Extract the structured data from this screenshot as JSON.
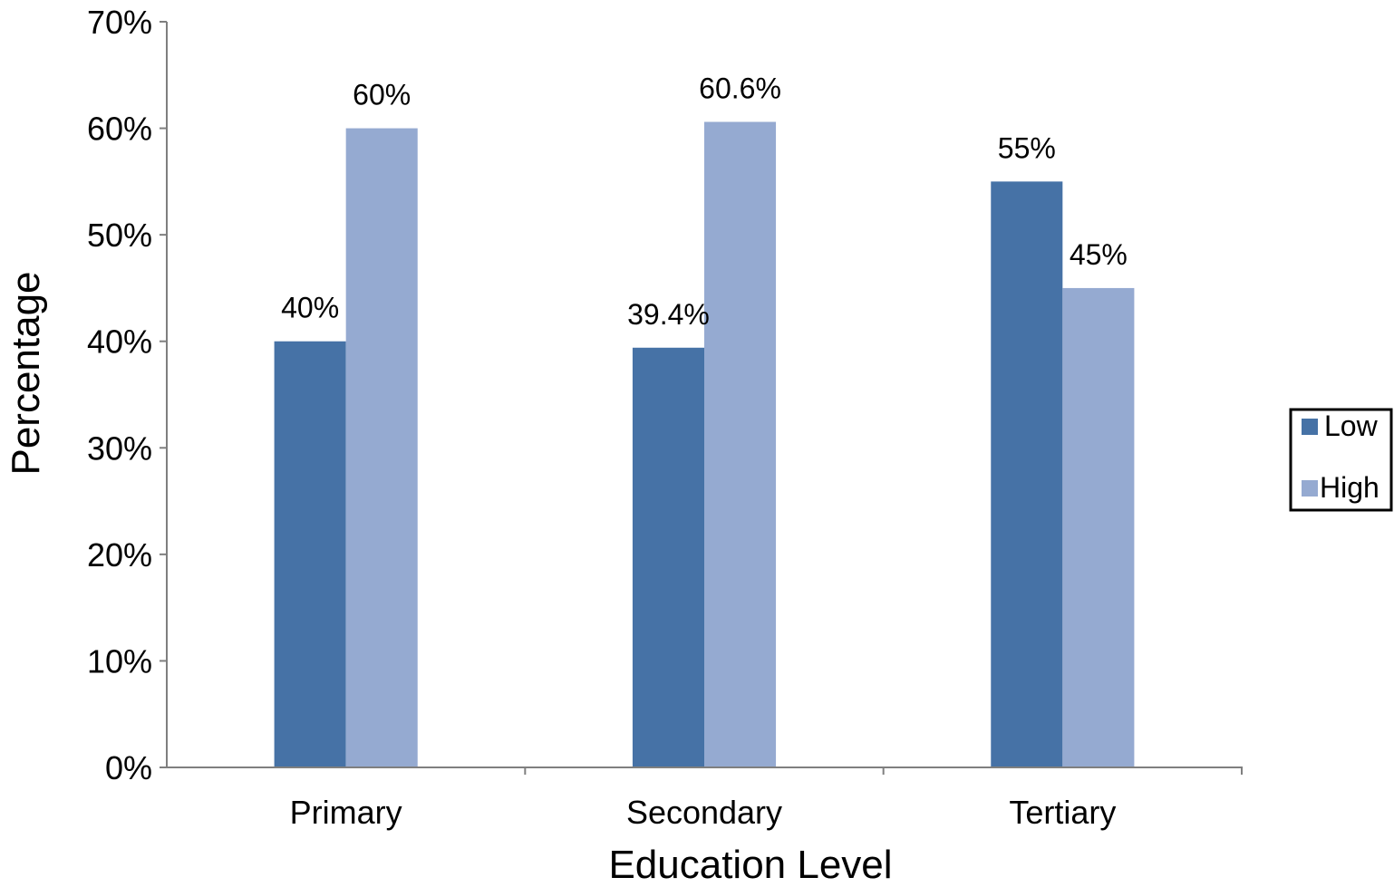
{
  "chart_data": {
    "type": "bar",
    "title": "",
    "xlabel": "Education Level",
    "ylabel": "Percentage",
    "categories": [
      "Primary",
      "Secondary",
      "Tertiary"
    ],
    "series": [
      {
        "name": "Low",
        "values": [
          40,
          39.4,
          55
        ],
        "labels": [
          "40%",
          "39.4%",
          "55%"
        ],
        "color": "#4672a6"
      },
      {
        "name": "High",
        "values": [
          60,
          60.6,
          45
        ],
        "labels": [
          "60%",
          "60.6%",
          "45%"
        ],
        "color": "#95aad1"
      }
    ],
    "ylim": [
      0,
      70
    ],
    "yticks": [
      0,
      10,
      20,
      30,
      40,
      50,
      60,
      70
    ],
    "ytick_labels": [
      "0%",
      "10%",
      "20%",
      "30%",
      "40%",
      "50%",
      "60%",
      "70%"
    ],
    "grid": false,
    "legend_position": "right"
  }
}
